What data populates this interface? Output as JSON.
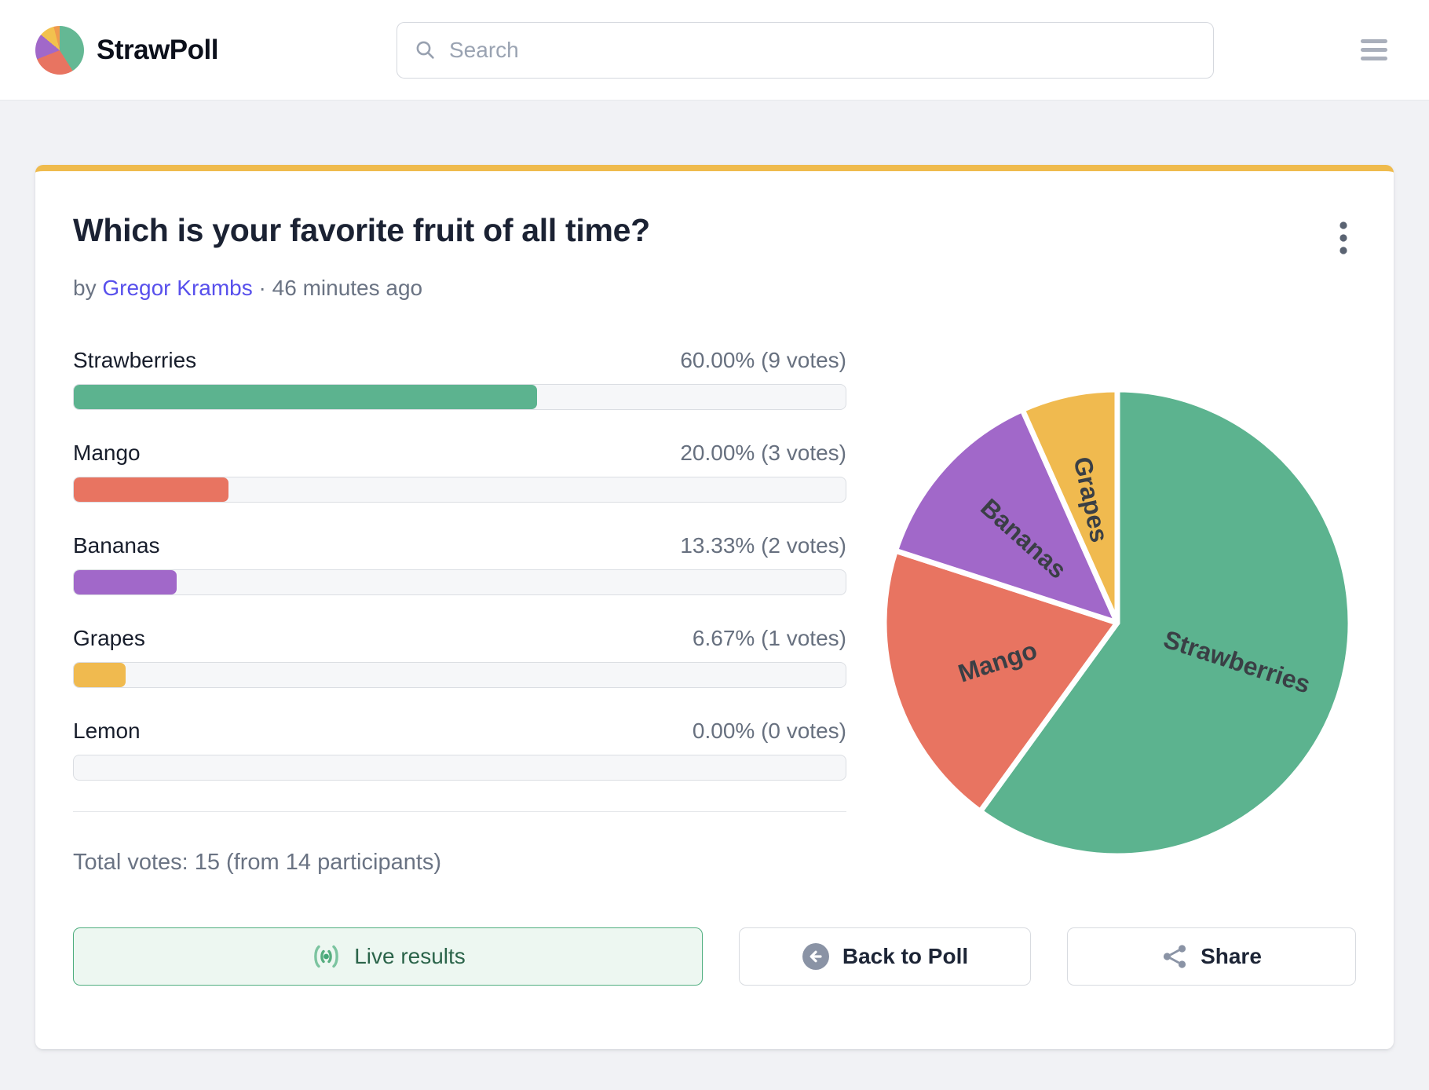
{
  "header": {
    "brand": "StrawPoll",
    "search_placeholder": "Search"
  },
  "poll": {
    "title": "Which is your favorite fruit of all time?",
    "byline_prefix": "by",
    "author": "Gregor Krambs",
    "byline_separator": "·",
    "time_ago": "46 minutes ago",
    "total_votes_text": "Total votes: 15 (from 14 participants)",
    "options": [
      {
        "label": "Strawberries",
        "value_text": "60.00% (9 votes)",
        "percent": 60,
        "votes": 9,
        "color": "#5CB38F"
      },
      {
        "label": "Mango",
        "value_text": "20.00% (3 votes)",
        "percent": 20,
        "votes": 3,
        "color": "#E87461"
      },
      {
        "label": "Bananas",
        "value_text": "13.33% (2 votes)",
        "percent": 13.33,
        "votes": 2,
        "color": "#A168C9"
      },
      {
        "label": "Grapes",
        "value_text": "6.67% (1 votes)",
        "percent": 6.67,
        "votes": 1,
        "color": "#F0BA4F"
      },
      {
        "label": "Lemon",
        "value_text": "0.00% (0 votes)",
        "percent": 0,
        "votes": 0,
        "color": "#5CB38F"
      }
    ],
    "buttons": {
      "live": "Live results",
      "back": "Back to Poll",
      "share": "Share"
    }
  },
  "chart_data": {
    "type": "pie",
    "title": "",
    "categories": [
      "Strawberries",
      "Mango",
      "Bananas",
      "Grapes",
      "Lemon"
    ],
    "values": [
      60,
      20,
      13.33,
      6.67,
      0
    ],
    "votes": [
      9,
      3,
      2,
      1,
      0
    ],
    "colors": [
      "#5CB38F",
      "#E87461",
      "#A168C9",
      "#F0BA4F",
      "#CCCCCC"
    ],
    "label_color": "#3A3F45",
    "label_radius_frac": [
      0.54,
      0.54,
      0.54,
      0.54,
      0.54
    ],
    "start_angle": "top",
    "direction": "clockwise",
    "slice_stroke": "#FFFFFF",
    "legend_position": "none"
  },
  "icons": {
    "logo": "pie-chart-logo",
    "search": "magnifier",
    "menu": "hamburger",
    "kebab": "vertical-three-dots",
    "live": "broadcast-waves",
    "back": "circle-arrow-left",
    "share": "share-nodes"
  },
  "colors": {
    "page_bg": "#F1F2F5",
    "card_accent_top": "#EFBB4D",
    "link": "#5850EC",
    "muted_text": "#6A7383",
    "live_border": "#4FAE7F",
    "live_bg": "#EDF7F1",
    "live_text": "#2B644A"
  }
}
